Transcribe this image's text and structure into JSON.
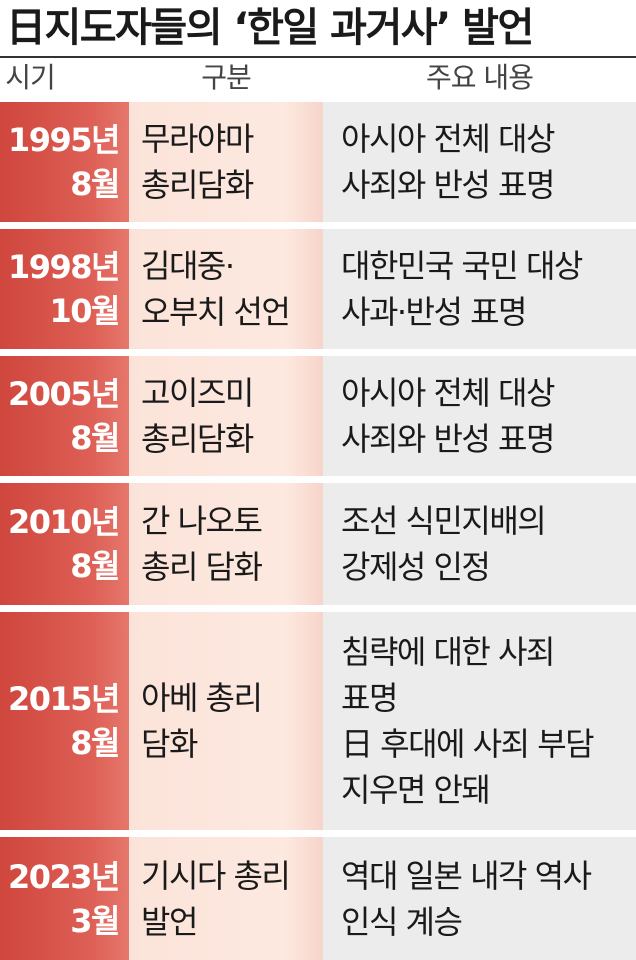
{
  "title": "日지도자들의 ‘한일 과거사’ 발언",
  "headers": {
    "period": "시기",
    "category": "구분",
    "content": "주요 내용"
  },
  "rows": [
    {
      "year": "1995년",
      "month": "8월",
      "division": [
        "무라야마",
        "총리담화"
      ],
      "content": [
        "아시아 전체 대상",
        "사죄와 반성 표명"
      ]
    },
    {
      "year": "1998년",
      "month": "10월",
      "division": [
        "김대중·",
        "오부치 선언"
      ],
      "content": [
        "대한민국 국민 대상",
        "사과·반성 표명"
      ]
    },
    {
      "year": "2005년",
      "month": "8월",
      "division": [
        "고이즈미",
        "총리담화"
      ],
      "content": [
        "아시아 전체 대상",
        "사죄와 반성 표명"
      ]
    },
    {
      "year": "2010년",
      "month": "8월",
      "division": [
        "간 나오토",
        "총리 담화"
      ],
      "content": [
        "조선 식민지배의",
        "강제성 인정"
      ]
    },
    {
      "year": "2015년",
      "month": "8월",
      "division": [
        "아베 총리",
        "담화"
      ],
      "content": [
        "침략에 대한 사죄",
        "표명",
        "日 후대에 사죄 부담",
        "지우면 안돼"
      ]
    },
    {
      "year": "2023년",
      "month": "3월",
      "division": [
        "기시다 총리",
        "발언"
      ],
      "content": [
        "역대 일본 내각 역사",
        "인식 계승"
      ]
    }
  ],
  "colors": {
    "date_bg": "#d4493f",
    "division_bg": "#fde6dc",
    "content_bg": "#ececec"
  }
}
